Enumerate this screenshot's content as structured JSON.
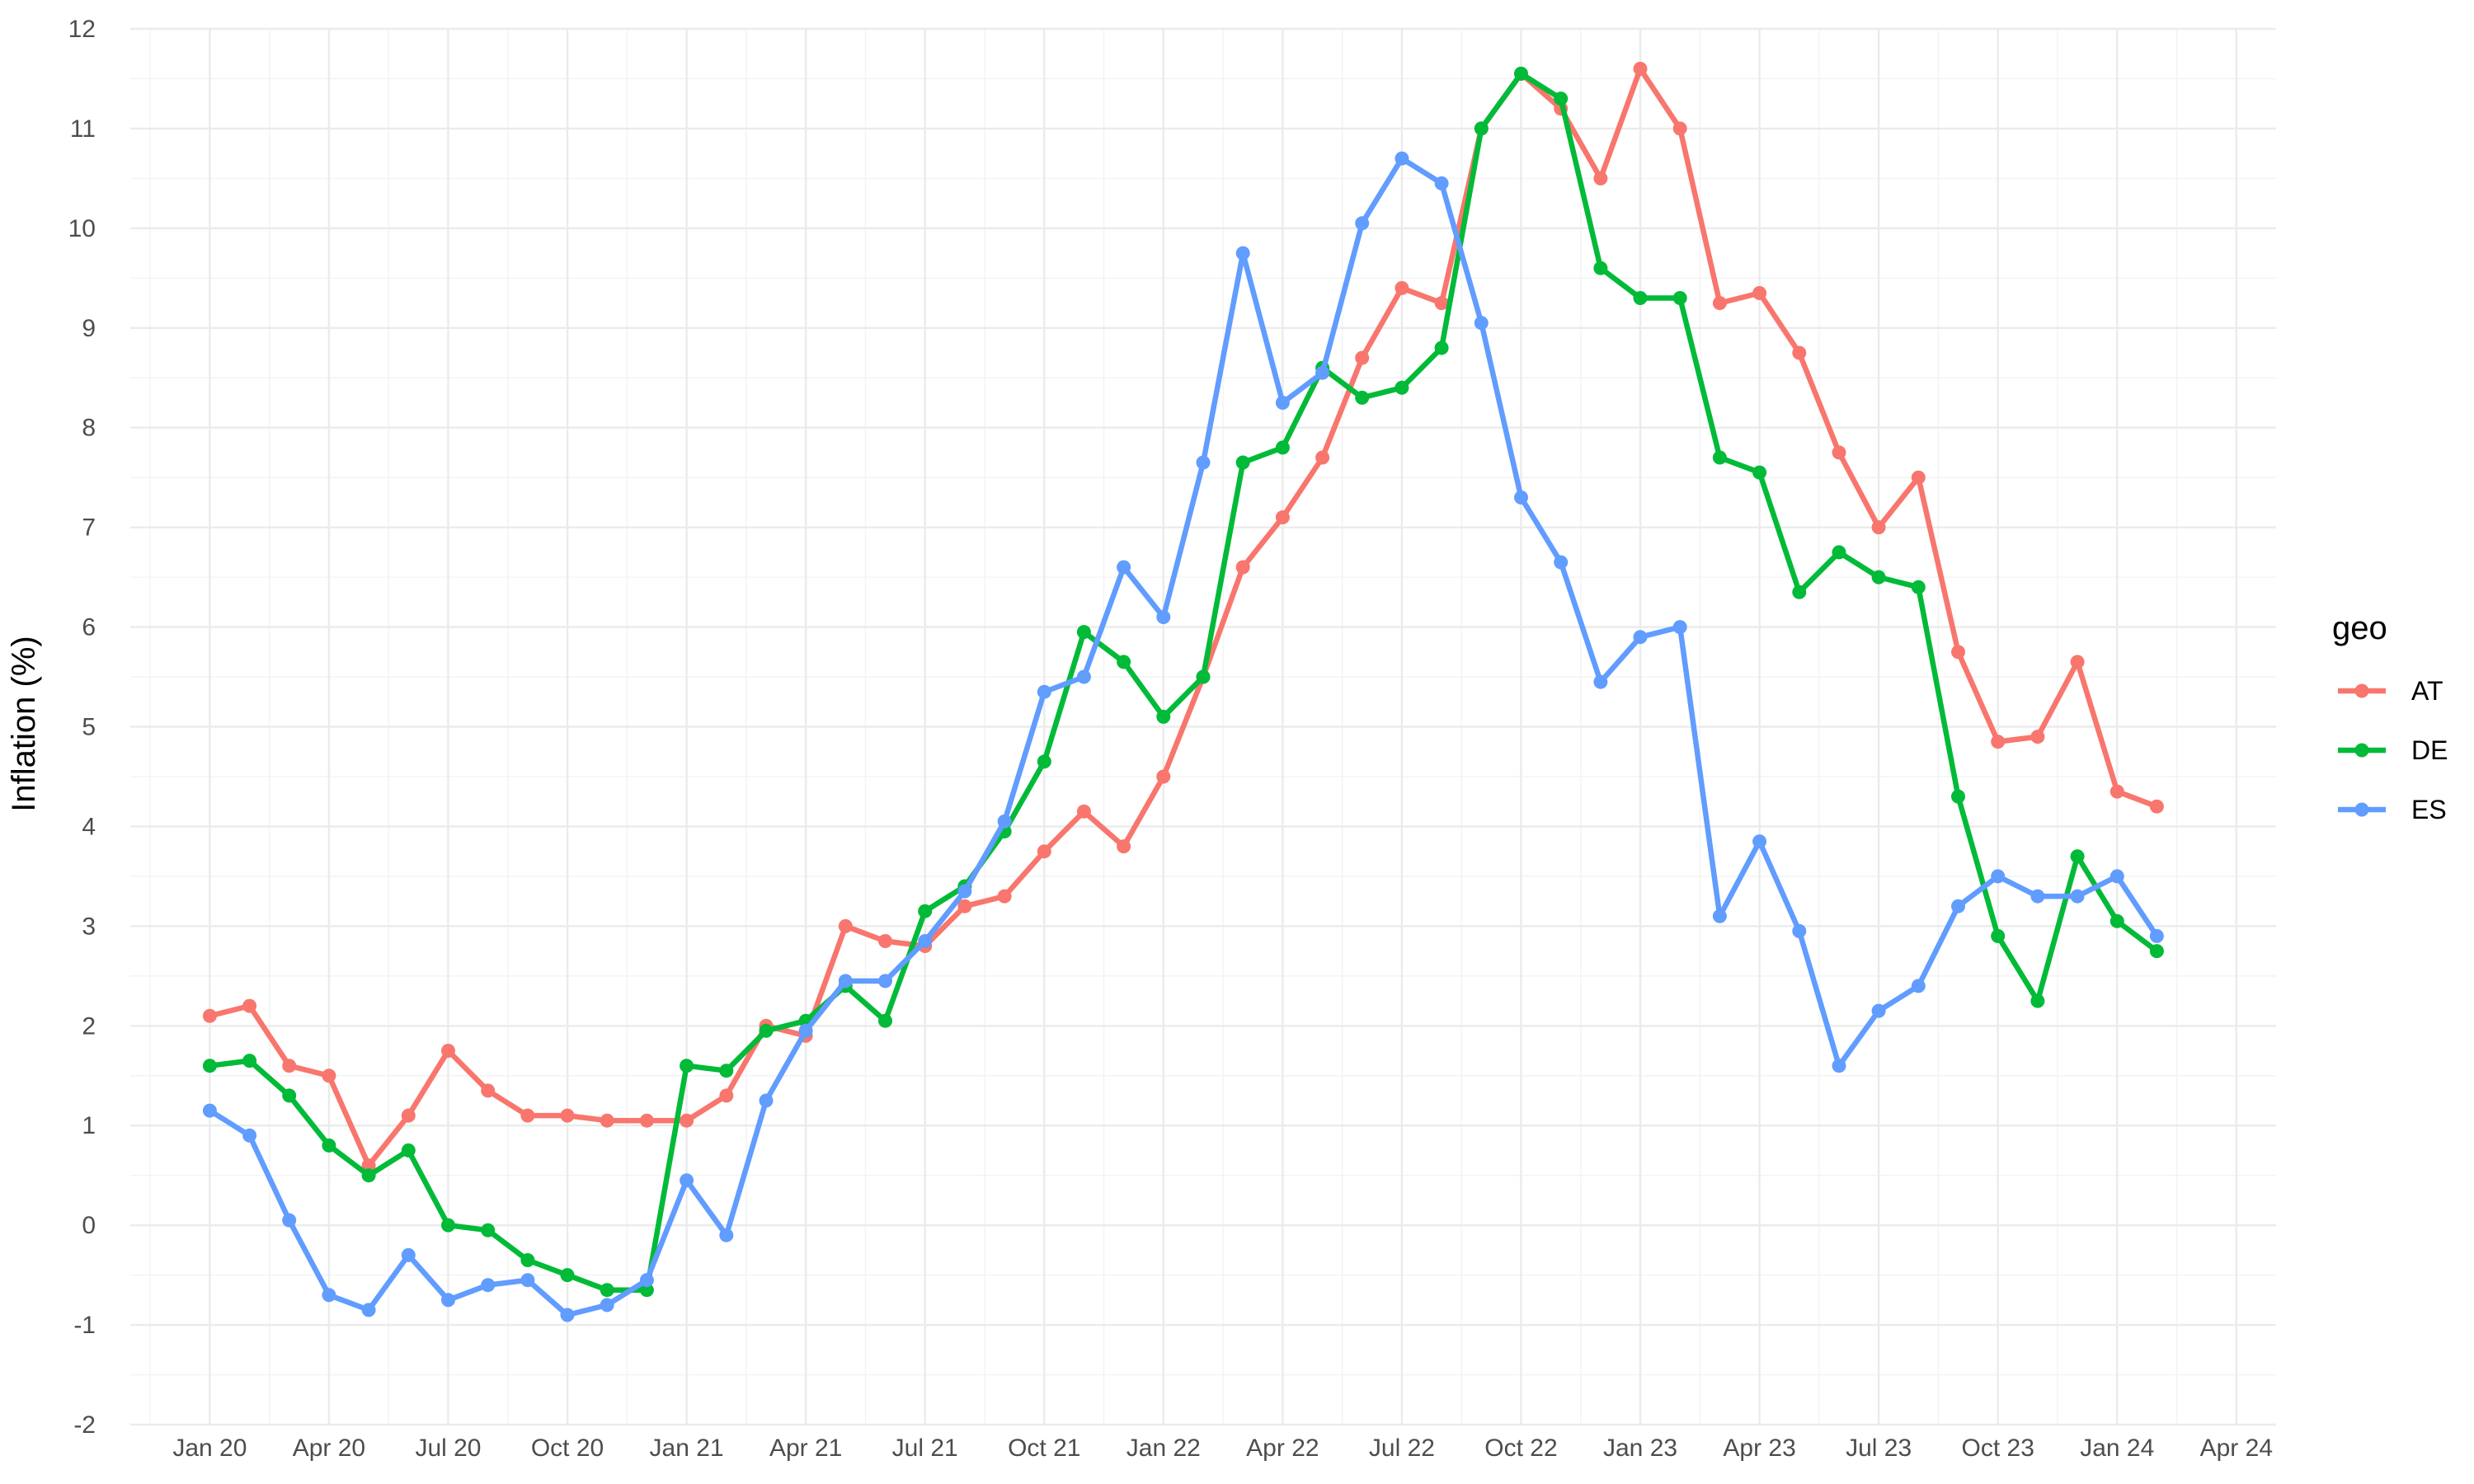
{
  "chart_data": {
    "type": "line",
    "ylabel": "Inflation (%)",
    "xlabel": "",
    "ylim": [
      -2,
      12
    ],
    "yticks": [
      -2,
      -1,
      0,
      1,
      2,
      3,
      4,
      5,
      6,
      7,
      8,
      9,
      10,
      11,
      12
    ],
    "xlim": [
      "2019-11",
      "2024-05"
    ],
    "xticks": [
      {
        "date": "2020-01",
        "label": "Jan 20"
      },
      {
        "date": "2020-04",
        "label": "Apr 20"
      },
      {
        "date": "2020-07",
        "label": "Jul 20"
      },
      {
        "date": "2020-10",
        "label": "Oct 20"
      },
      {
        "date": "2021-01",
        "label": "Jan 21"
      },
      {
        "date": "2021-04",
        "label": "Apr 21"
      },
      {
        "date": "2021-07",
        "label": "Jul 21"
      },
      {
        "date": "2021-10",
        "label": "Oct 21"
      },
      {
        "date": "2022-01",
        "label": "Jan 22"
      },
      {
        "date": "2022-04",
        "label": "Apr 22"
      },
      {
        "date": "2022-07",
        "label": "Jul 22"
      },
      {
        "date": "2022-10",
        "label": "Oct 22"
      },
      {
        "date": "2023-01",
        "label": "Jan 23"
      },
      {
        "date": "2023-04",
        "label": "Apr 23"
      },
      {
        "date": "2023-07",
        "label": "Jul 23"
      },
      {
        "date": "2023-10",
        "label": "Oct 23"
      },
      {
        "date": "2024-01",
        "label": "Jan 24"
      },
      {
        "date": "2024-04",
        "label": "Apr 24"
      }
    ],
    "grid": true,
    "legend": {
      "title": "geo",
      "position": "right"
    },
    "x": [
      "2020-01",
      "2020-02",
      "2020-03",
      "2020-04",
      "2020-05",
      "2020-06",
      "2020-07",
      "2020-08",
      "2020-09",
      "2020-10",
      "2020-11",
      "2020-12",
      "2021-01",
      "2021-02",
      "2021-03",
      "2021-04",
      "2021-05",
      "2021-06",
      "2021-07",
      "2021-08",
      "2021-09",
      "2021-10",
      "2021-11",
      "2021-12",
      "2022-01",
      "2022-02",
      "2022-03",
      "2022-04",
      "2022-05",
      "2022-06",
      "2022-07",
      "2022-08",
      "2022-09",
      "2022-10",
      "2022-11",
      "2022-12",
      "2023-01",
      "2023-02",
      "2023-03",
      "2023-04",
      "2023-05",
      "2023-06",
      "2023-07",
      "2023-08",
      "2023-09",
      "2023-10",
      "2023-11",
      "2023-12",
      "2024-01",
      "2024-02"
    ],
    "series": [
      {
        "name": "AT",
        "color": "#F8766D",
        "values": [
          2.1,
          2.2,
          1.6,
          1.5,
          0.6,
          1.1,
          1.75,
          1.35,
          1.1,
          1.1,
          1.05,
          1.05,
          1.05,
          1.3,
          2.0,
          1.9,
          3.0,
          2.85,
          2.8,
          3.2,
          3.3,
          3.75,
          4.15,
          3.8,
          4.5,
          5.5,
          6.6,
          7.1,
          7.7,
          8.7,
          9.4,
          9.25,
          11.0,
          11.55,
          11.2,
          10.5,
          11.6,
          11.0,
          9.25,
          9.35,
          8.75,
          7.75,
          7.0,
          7.5,
          5.75,
          4.85,
          4.9,
          5.65,
          4.35,
          4.2
        ]
      },
      {
        "name": "DE",
        "color": "#00BA38",
        "values": [
          1.6,
          1.65,
          1.3,
          0.8,
          0.5,
          0.75,
          0.0,
          -0.05,
          -0.35,
          -0.5,
          -0.65,
          -0.65,
          1.6,
          1.55,
          1.95,
          2.05,
          2.4,
          2.05,
          3.15,
          3.4,
          3.95,
          4.65,
          5.95,
          5.65,
          5.1,
          5.5,
          7.65,
          7.8,
          8.6,
          8.3,
          8.4,
          8.8,
          11.0,
          11.55,
          11.3,
          9.6,
          9.3,
          9.3,
          7.7,
          7.55,
          6.35,
          6.75,
          6.5,
          6.4,
          4.3,
          2.9,
          2.25,
          3.7,
          3.05,
          2.75
        ]
      },
      {
        "name": "ES",
        "color": "#619CFF",
        "values": [
          1.15,
          0.9,
          0.05,
          -0.7,
          -0.85,
          -0.3,
          -0.75,
          -0.6,
          -0.55,
          -0.9,
          -0.8,
          -0.55,
          0.45,
          -0.1,
          1.25,
          1.95,
          2.45,
          2.45,
          2.85,
          3.35,
          4.05,
          5.35,
          5.5,
          6.6,
          6.1,
          7.65,
          9.75,
          8.25,
          8.55,
          10.05,
          10.7,
          10.45,
          9.05,
          7.3,
          6.65,
          5.45,
          5.9,
          6.0,
          3.1,
          3.85,
          2.95,
          1.6,
          2.15,
          2.4,
          3.2,
          3.5,
          3.3,
          3.3,
          3.5,
          2.9
        ]
      }
    ]
  }
}
